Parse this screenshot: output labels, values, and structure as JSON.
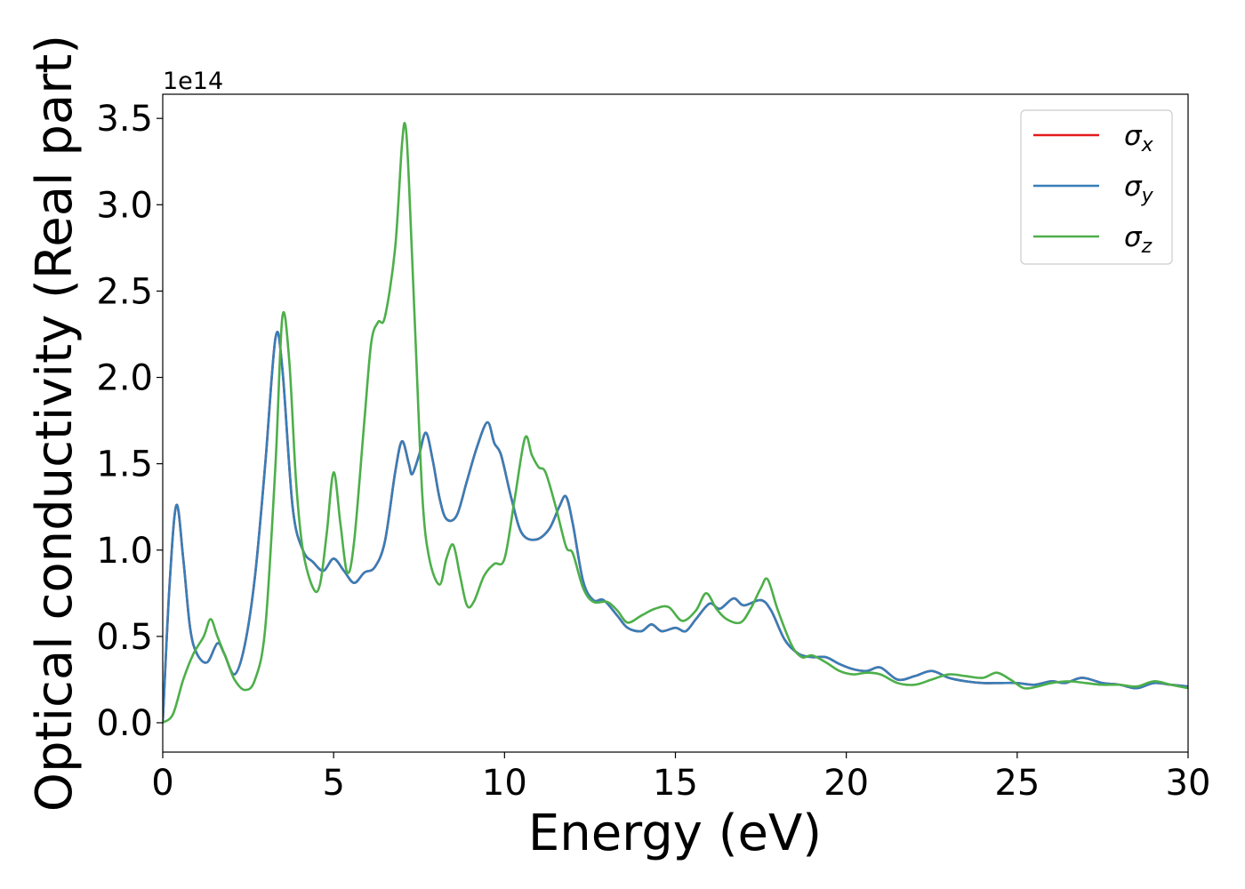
{
  "chart_data": {
    "type": "line",
    "xlabel": "Energy (eV)",
    "ylabel": "Optical conductivity (Real part)",
    "y_offset_text": "1e14",
    "xlim": [
      0,
      30
    ],
    "ylim": [
      -0.17,
      3.64
    ],
    "xticks": [
      0,
      5,
      10,
      15,
      20,
      25,
      30
    ],
    "xtick_labels": [
      "0",
      "5",
      "10",
      "15",
      "20",
      "25",
      "30"
    ],
    "yticks": [
      0.0,
      0.5,
      1.0,
      1.5,
      2.0,
      2.5,
      3.0,
      3.5
    ],
    "ytick_labels": [
      "0.0",
      "0.5",
      "1.0",
      "1.5",
      "2.0",
      "2.5",
      "3.0",
      "3.5"
    ],
    "grid": false,
    "legend_position": "top-right",
    "series": [
      {
        "name": "σ",
        "subscript": "x",
        "color": "#e41a1c",
        "points": [
          [
            0,
            0
          ],
          [
            0.2,
            0.8
          ],
          [
            0.4,
            1.26
          ],
          [
            0.6,
            0.95
          ],
          [
            0.8,
            0.55
          ],
          [
            1.0,
            0.4
          ],
          [
            1.3,
            0.35
          ],
          [
            1.6,
            0.46
          ],
          [
            1.8,
            0.4
          ],
          [
            2.1,
            0.28
          ],
          [
            2.4,
            0.45
          ],
          [
            2.7,
            0.85
          ],
          [
            3.0,
            1.5
          ],
          [
            3.3,
            2.23
          ],
          [
            3.5,
            2.05
          ],
          [
            3.8,
            1.25
          ],
          [
            4.1,
            1.0
          ],
          [
            4.4,
            0.93
          ],
          [
            4.7,
            0.88
          ],
          [
            5.0,
            0.95
          ],
          [
            5.3,
            0.88
          ],
          [
            5.6,
            0.81
          ],
          [
            5.9,
            0.87
          ],
          [
            6.2,
            0.9
          ],
          [
            6.5,
            1.05
          ],
          [
            6.8,
            1.45
          ],
          [
            7.0,
            1.63
          ],
          [
            7.2,
            1.5
          ],
          [
            7.3,
            1.44
          ],
          [
            7.5,
            1.55
          ],
          [
            7.7,
            1.68
          ],
          [
            7.9,
            1.52
          ],
          [
            8.1,
            1.3
          ],
          [
            8.3,
            1.18
          ],
          [
            8.6,
            1.2
          ],
          [
            8.9,
            1.4
          ],
          [
            9.2,
            1.6
          ],
          [
            9.5,
            1.74
          ],
          [
            9.7,
            1.62
          ],
          [
            9.9,
            1.55
          ],
          [
            10.2,
            1.3
          ],
          [
            10.5,
            1.1
          ],
          [
            10.9,
            1.06
          ],
          [
            11.3,
            1.12
          ],
          [
            11.6,
            1.25
          ],
          [
            11.8,
            1.31
          ],
          [
            12.0,
            1.15
          ],
          [
            12.3,
            0.82
          ],
          [
            12.6,
            0.71
          ],
          [
            12.9,
            0.71
          ],
          [
            13.3,
            0.62
          ],
          [
            13.6,
            0.55
          ],
          [
            14.0,
            0.53
          ],
          [
            14.3,
            0.57
          ],
          [
            14.6,
            0.53
          ],
          [
            15.0,
            0.55
          ],
          [
            15.3,
            0.53
          ],
          [
            15.6,
            0.6
          ],
          [
            16.0,
            0.69
          ],
          [
            16.3,
            0.66
          ],
          [
            16.7,
            0.72
          ],
          [
            17.0,
            0.68
          ],
          [
            17.5,
            0.71
          ],
          [
            17.8,
            0.65
          ],
          [
            18.2,
            0.48
          ],
          [
            18.6,
            0.4
          ],
          [
            19.0,
            0.38
          ],
          [
            19.4,
            0.38
          ],
          [
            19.8,
            0.34
          ],
          [
            20.2,
            0.31
          ],
          [
            20.6,
            0.3
          ],
          [
            21.0,
            0.32
          ],
          [
            21.5,
            0.25
          ],
          [
            22.0,
            0.27
          ],
          [
            22.5,
            0.3
          ],
          [
            23.0,
            0.26
          ],
          [
            23.5,
            0.24
          ],
          [
            24.0,
            0.23
          ],
          [
            24.5,
            0.23
          ],
          [
            25.0,
            0.23
          ],
          [
            25.5,
            0.22
          ],
          [
            26.0,
            0.24
          ],
          [
            26.4,
            0.23
          ],
          [
            26.9,
            0.26
          ],
          [
            27.5,
            0.23
          ],
          [
            28.0,
            0.22
          ],
          [
            28.5,
            0.2
          ],
          [
            29.0,
            0.23
          ],
          [
            29.5,
            0.22
          ],
          [
            30.0,
            0.21
          ]
        ]
      },
      {
        "name": "σ",
        "subscript": "y",
        "color": "#377eb8",
        "points": [
          [
            0,
            0
          ],
          [
            0.2,
            0.8
          ],
          [
            0.4,
            1.26
          ],
          [
            0.6,
            0.95
          ],
          [
            0.8,
            0.55
          ],
          [
            1.0,
            0.4
          ],
          [
            1.3,
            0.35
          ],
          [
            1.6,
            0.46
          ],
          [
            1.8,
            0.4
          ],
          [
            2.1,
            0.28
          ],
          [
            2.4,
            0.45
          ],
          [
            2.7,
            0.85
          ],
          [
            3.0,
            1.5
          ],
          [
            3.3,
            2.23
          ],
          [
            3.5,
            2.05
          ],
          [
            3.8,
            1.25
          ],
          [
            4.1,
            1.0
          ],
          [
            4.4,
            0.93
          ],
          [
            4.7,
            0.88
          ],
          [
            5.0,
            0.95
          ],
          [
            5.3,
            0.88
          ],
          [
            5.6,
            0.81
          ],
          [
            5.9,
            0.87
          ],
          [
            6.2,
            0.9
          ],
          [
            6.5,
            1.05
          ],
          [
            6.8,
            1.45
          ],
          [
            7.0,
            1.63
          ],
          [
            7.2,
            1.5
          ],
          [
            7.3,
            1.44
          ],
          [
            7.5,
            1.55
          ],
          [
            7.7,
            1.68
          ],
          [
            7.9,
            1.52
          ],
          [
            8.1,
            1.3
          ],
          [
            8.3,
            1.18
          ],
          [
            8.6,
            1.2
          ],
          [
            8.9,
            1.4
          ],
          [
            9.2,
            1.6
          ],
          [
            9.5,
            1.74
          ],
          [
            9.7,
            1.62
          ],
          [
            9.9,
            1.55
          ],
          [
            10.2,
            1.3
          ],
          [
            10.5,
            1.1
          ],
          [
            10.9,
            1.06
          ],
          [
            11.3,
            1.12
          ],
          [
            11.6,
            1.25
          ],
          [
            11.8,
            1.31
          ],
          [
            12.0,
            1.15
          ],
          [
            12.3,
            0.82
          ],
          [
            12.6,
            0.71
          ],
          [
            12.9,
            0.71
          ],
          [
            13.3,
            0.62
          ],
          [
            13.6,
            0.55
          ],
          [
            14.0,
            0.53
          ],
          [
            14.3,
            0.57
          ],
          [
            14.6,
            0.53
          ],
          [
            15.0,
            0.55
          ],
          [
            15.3,
            0.53
          ],
          [
            15.6,
            0.6
          ],
          [
            16.0,
            0.69
          ],
          [
            16.3,
            0.66
          ],
          [
            16.7,
            0.72
          ],
          [
            17.0,
            0.68
          ],
          [
            17.5,
            0.71
          ],
          [
            17.8,
            0.65
          ],
          [
            18.2,
            0.48
          ],
          [
            18.6,
            0.4
          ],
          [
            19.0,
            0.38
          ],
          [
            19.4,
            0.38
          ],
          [
            19.8,
            0.34
          ],
          [
            20.2,
            0.31
          ],
          [
            20.6,
            0.3
          ],
          [
            21.0,
            0.32
          ],
          [
            21.5,
            0.25
          ],
          [
            22.0,
            0.27
          ],
          [
            22.5,
            0.3
          ],
          [
            23.0,
            0.26
          ],
          [
            23.5,
            0.24
          ],
          [
            24.0,
            0.23
          ],
          [
            24.5,
            0.23
          ],
          [
            25.0,
            0.23
          ],
          [
            25.5,
            0.22
          ],
          [
            26.0,
            0.24
          ],
          [
            26.4,
            0.23
          ],
          [
            26.9,
            0.26
          ],
          [
            27.5,
            0.23
          ],
          [
            28.0,
            0.22
          ],
          [
            28.5,
            0.2
          ],
          [
            29.0,
            0.23
          ],
          [
            29.5,
            0.22
          ],
          [
            30.0,
            0.21
          ]
        ]
      },
      {
        "name": "σ",
        "subscript": "z",
        "color": "#4daf4a",
        "points": [
          [
            0,
            0
          ],
          [
            0.3,
            0.05
          ],
          [
            0.6,
            0.25
          ],
          [
            0.9,
            0.4
          ],
          [
            1.2,
            0.5
          ],
          [
            1.4,
            0.6
          ],
          [
            1.6,
            0.5
          ],
          [
            1.9,
            0.35
          ],
          [
            2.1,
            0.25
          ],
          [
            2.4,
            0.19
          ],
          [
            2.7,
            0.25
          ],
          [
            3.0,
            0.55
          ],
          [
            3.3,
            1.5
          ],
          [
            3.5,
            2.35
          ],
          [
            3.7,
            2.1
          ],
          [
            3.9,
            1.4
          ],
          [
            4.1,
            1.0
          ],
          [
            4.4,
            0.78
          ],
          [
            4.6,
            0.8
          ],
          [
            4.8,
            1.1
          ],
          [
            5.0,
            1.45
          ],
          [
            5.2,
            1.15
          ],
          [
            5.4,
            0.87
          ],
          [
            5.6,
            1.05
          ],
          [
            5.9,
            1.75
          ],
          [
            6.1,
            2.2
          ],
          [
            6.3,
            2.32
          ],
          [
            6.5,
            2.35
          ],
          [
            6.8,
            2.75
          ],
          [
            7.0,
            3.35
          ],
          [
            7.1,
            3.46
          ],
          [
            7.2,
            3.15
          ],
          [
            7.4,
            2.2
          ],
          [
            7.6,
            1.3
          ],
          [
            7.8,
            0.95
          ],
          [
            8.1,
            0.8
          ],
          [
            8.3,
            0.95
          ],
          [
            8.5,
            1.03
          ],
          [
            8.7,
            0.85
          ],
          [
            8.9,
            0.68
          ],
          [
            9.1,
            0.7
          ],
          [
            9.4,
            0.85
          ],
          [
            9.7,
            0.92
          ],
          [
            10.0,
            0.95
          ],
          [
            10.3,
            1.3
          ],
          [
            10.6,
            1.65
          ],
          [
            10.8,
            1.55
          ],
          [
            11.0,
            1.48
          ],
          [
            11.2,
            1.45
          ],
          [
            11.5,
            1.25
          ],
          [
            11.8,
            1.02
          ],
          [
            12.0,
            0.98
          ],
          [
            12.3,
            0.78
          ],
          [
            12.6,
            0.7
          ],
          [
            13.0,
            0.7
          ],
          [
            13.3,
            0.65
          ],
          [
            13.6,
            0.58
          ],
          [
            14.0,
            0.62
          ],
          [
            14.4,
            0.66
          ],
          [
            14.8,
            0.67
          ],
          [
            15.2,
            0.59
          ],
          [
            15.6,
            0.65
          ],
          [
            15.9,
            0.75
          ],
          [
            16.2,
            0.66
          ],
          [
            16.5,
            0.6
          ],
          [
            16.9,
            0.58
          ],
          [
            17.2,
            0.66
          ],
          [
            17.5,
            0.78
          ],
          [
            17.7,
            0.83
          ],
          [
            18.0,
            0.65
          ],
          [
            18.4,
            0.45
          ],
          [
            18.7,
            0.38
          ],
          [
            19.0,
            0.39
          ],
          [
            19.4,
            0.35
          ],
          [
            19.8,
            0.3
          ],
          [
            20.2,
            0.28
          ],
          [
            20.6,
            0.29
          ],
          [
            21.0,
            0.28
          ],
          [
            21.5,
            0.23
          ],
          [
            22.0,
            0.22
          ],
          [
            22.5,
            0.25
          ],
          [
            23.0,
            0.28
          ],
          [
            23.5,
            0.27
          ],
          [
            24.0,
            0.26
          ],
          [
            24.4,
            0.29
          ],
          [
            24.8,
            0.25
          ],
          [
            25.2,
            0.2
          ],
          [
            25.6,
            0.21
          ],
          [
            26.0,
            0.23
          ],
          [
            26.5,
            0.24
          ],
          [
            27.0,
            0.23
          ],
          [
            27.5,
            0.22
          ],
          [
            28.0,
            0.22
          ],
          [
            28.5,
            0.21
          ],
          [
            29.0,
            0.24
          ],
          [
            29.5,
            0.22
          ],
          [
            30.0,
            0.2
          ]
        ]
      }
    ]
  }
}
